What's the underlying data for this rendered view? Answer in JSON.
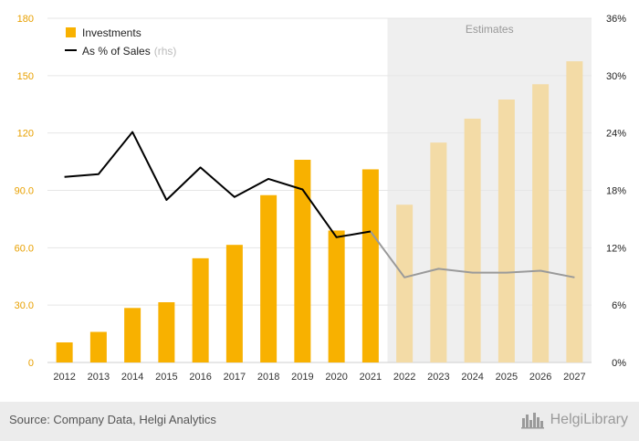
{
  "chart_data": {
    "type": "bar",
    "categories": [
      "2012",
      "2013",
      "2014",
      "2015",
      "2016",
      "2017",
      "2018",
      "2019",
      "2020",
      "2021",
      "2022",
      "2023",
      "2024",
      "2025",
      "2026",
      "2027"
    ],
    "series": [
      {
        "name": "Investments",
        "kind": "bar",
        "axis": "left",
        "values": [
          10.5,
          16.0,
          28.5,
          31.5,
          54.5,
          61.5,
          87.5,
          106.0,
          69.0,
          101.0,
          82.5,
          115.0,
          127.5,
          137.5,
          145.5,
          157.5
        ]
      },
      {
        "name": "As % of Sales",
        "name_suffix": "(rhs)",
        "kind": "line",
        "axis": "right",
        "values": [
          19.4,
          19.7,
          24.1,
          17.0,
          20.4,
          17.3,
          19.2,
          18.1,
          13.1,
          13.7,
          8.9,
          9.8,
          9.4,
          9.4,
          9.6,
          8.9
        ]
      }
    ],
    "estimates_label": "Estimates",
    "estimates_from_index": 10,
    "left_axis": {
      "ylim": [
        0,
        180
      ],
      "ticks": [
        0,
        30,
        60,
        90,
        120,
        150,
        180
      ],
      "tick_labels": [
        "0",
        "30.0",
        "60.0",
        "90.0",
        "120",
        "150",
        "180"
      ]
    },
    "right_axis": {
      "ylim": [
        0,
        36
      ],
      "ticks": [
        0,
        6,
        12,
        18,
        24,
        30,
        36
      ],
      "tick_labels": [
        "0%",
        "6%",
        "12%",
        "18%",
        "24%",
        "30%",
        "36%"
      ]
    },
    "legend_placement": "top-left",
    "grid": true,
    "colors": {
      "bar": "#f8b100",
      "bar_estimate": "#f3dba6",
      "line": "#000000",
      "line_estimate": "#9a9a9a",
      "left_tick": "#e8a000",
      "right_tick": "#222222",
      "estimates_band": "#efefef"
    }
  },
  "footer": {
    "source": "Source: Company Data, Helgi Analytics",
    "brand": "HelgiLibrary"
  },
  "icons": {
    "brand_logo": "city-skyline-icon"
  }
}
